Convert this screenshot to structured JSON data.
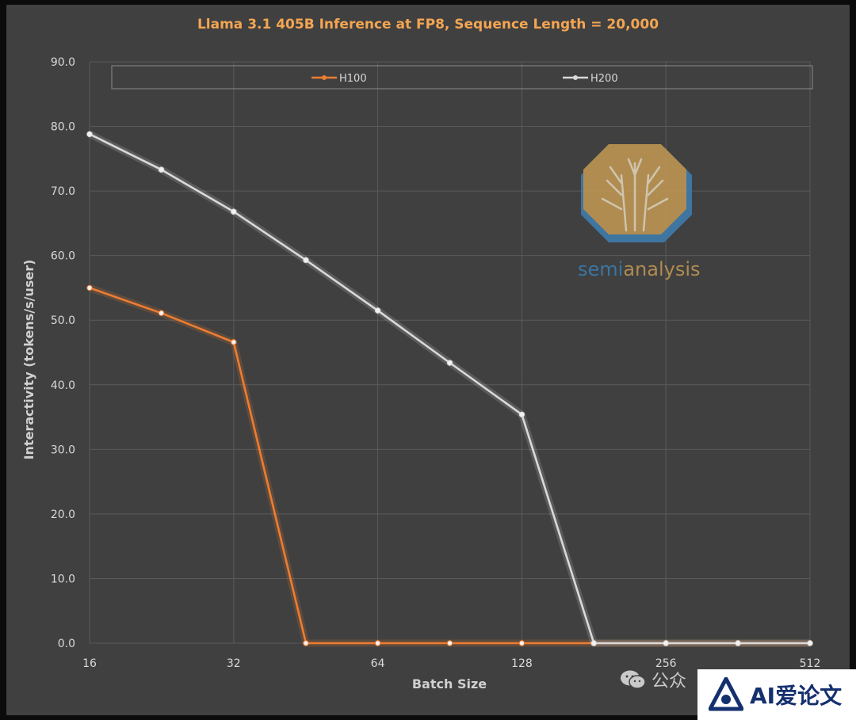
{
  "chart_data": {
    "type": "line",
    "title": "Llama 3.1 405B Inference at FP8, Sequence Length = 20,000",
    "xlabel": "Batch Size",
    "ylabel": "Interactivity (tokens/s/user)",
    "x_scale": "log2",
    "x": [
      16,
      22.6,
      32,
      45.3,
      64,
      90.5,
      128,
      181,
      256,
      362,
      512
    ],
    "xticks": [
      16,
      32,
      64,
      128,
      256,
      512
    ],
    "xtick_labels": [
      "16",
      "32",
      "64",
      "128",
      "256",
      "512"
    ],
    "xlim": [
      16,
      512
    ],
    "ylim": [
      0,
      90
    ],
    "yticks": [
      0,
      10,
      20,
      30,
      40,
      50,
      60,
      70,
      80,
      90
    ],
    "ytick_labels": [
      "0.0",
      "10.0",
      "20.0",
      "30.0",
      "40.0",
      "50.0",
      "60.0",
      "70.0",
      "80.0",
      "90.0"
    ],
    "grid": true,
    "legend_position": "top",
    "series": [
      {
        "name": "H100",
        "color": "#ed7d31",
        "values": [
          55.0,
          51.1,
          46.6,
          0.0,
          0.0,
          0.0,
          0.0,
          0.0,
          0.0,
          0.0,
          0.0
        ]
      },
      {
        "name": "H200",
        "color": "#d9d9d9",
        "values": [
          78.8,
          73.3,
          66.8,
          59.3,
          51.5,
          43.4,
          35.4,
          0.0,
          0.0,
          0.0,
          0.0
        ]
      }
    ]
  },
  "watermark": {
    "text_a": "semi",
    "text_b": "analysis",
    "color_a": "#3a7fb5",
    "color_b": "#c49a55"
  },
  "footer": {
    "wechat_text": "公众",
    "brand_text": "AI爱论文",
    "icon": "wechat-icon"
  }
}
